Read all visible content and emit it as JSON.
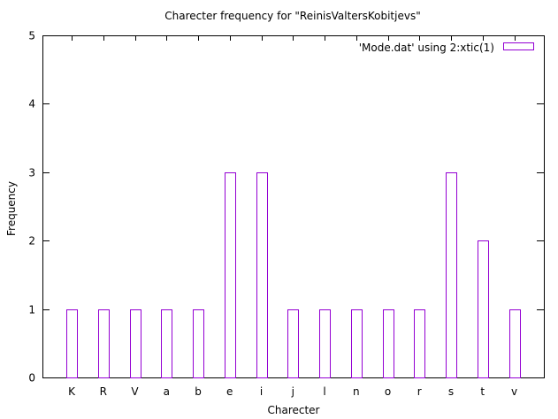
{
  "chart_data": {
    "type": "bar",
    "title": "Charecter frequency for \"ReinisValtersKobitjevs\"",
    "xlabel": "Charecter",
    "ylabel": "Frequency",
    "categories": [
      "K",
      "R",
      "V",
      "a",
      "b",
      "e",
      "i",
      "j",
      "l",
      "n",
      "o",
      "r",
      "s",
      "t",
      "v"
    ],
    "series": [
      {
        "name": "'Mode.dat' using 2:xtic(1)",
        "values": [
          1,
          1,
          1,
          1,
          1,
          3,
          3,
          1,
          1,
          1,
          1,
          1,
          3,
          2,
          1
        ]
      }
    ],
    "ylim": [
      0,
      5
    ],
    "yticks": [
      "0",
      "1",
      "2",
      "3",
      "4",
      "5"
    ],
    "grid": false,
    "legend_position": "top-right",
    "colors": {
      "bar_stroke": "#9400d3",
      "bar_fill": "#ffffff",
      "axis": "#000000"
    }
  }
}
